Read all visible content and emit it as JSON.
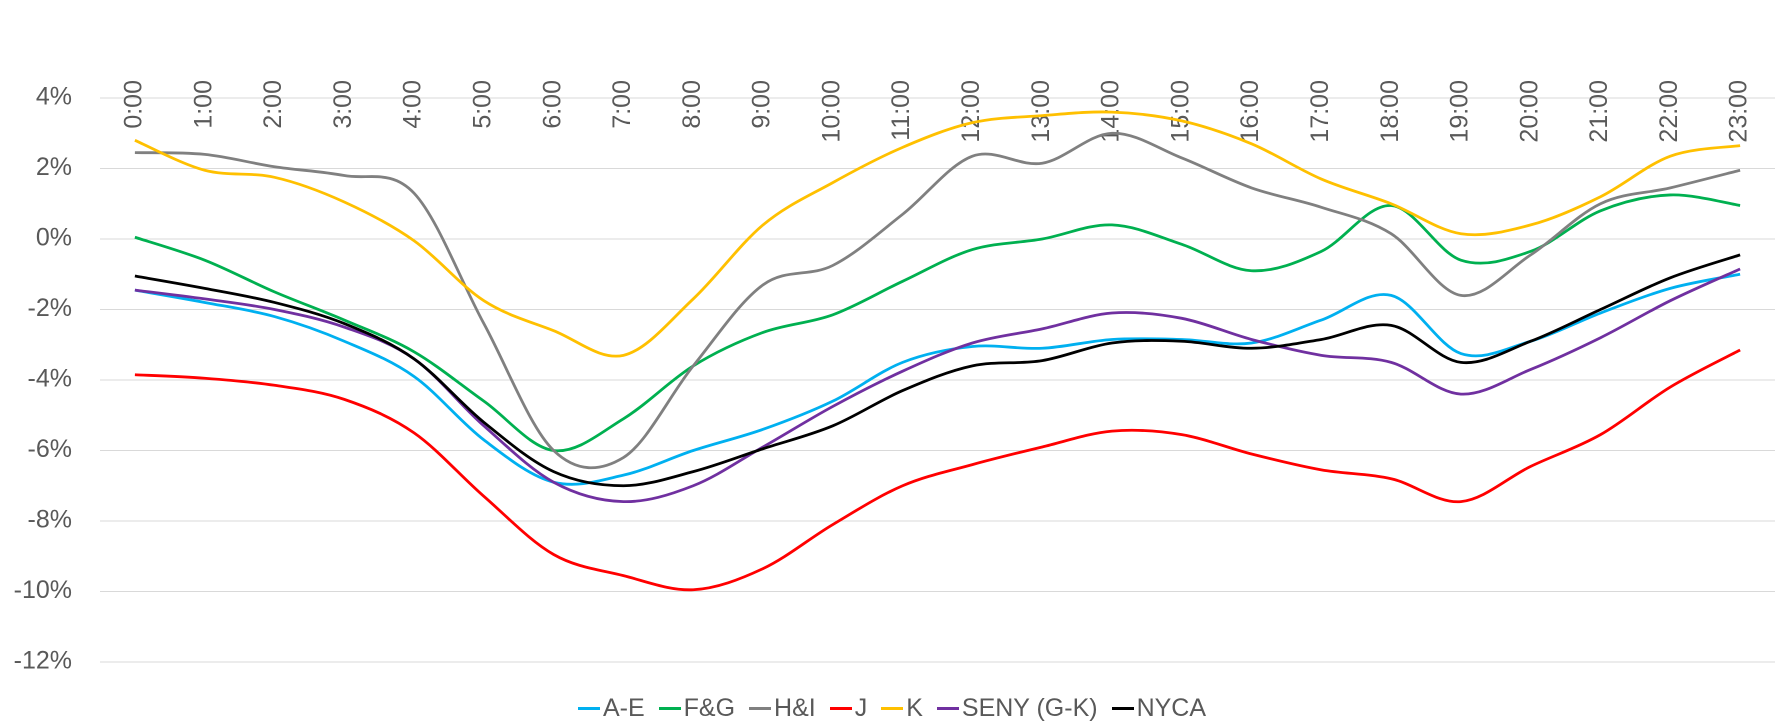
{
  "chart_data": {
    "type": "line",
    "categories": [
      "0:00",
      "1:00",
      "2:00",
      "3:00",
      "4:00",
      "5:00",
      "6:00",
      "7:00",
      "8:00",
      "9:00",
      "10:00",
      "11:00",
      "12:00",
      "13:00",
      "14:00",
      "15:00",
      "16:00",
      "17:00",
      "18:00",
      "19:00",
      "20:00",
      "21:00",
      "22:00",
      "23:00"
    ],
    "ylim": [
      -12,
      4
    ],
    "yticks": [
      {
        "value": -12,
        "label": "-12%"
      },
      {
        "value": -10,
        "label": "-10%"
      },
      {
        "value": -8,
        "label": "-8%"
      },
      {
        "value": -6,
        "label": "-6%"
      },
      {
        "value": -4,
        "label": "-4%"
      },
      {
        "value": -2,
        "label": "-2%"
      },
      {
        "value": 0,
        "label": "0%"
      },
      {
        "value": 2,
        "label": "2%"
      },
      {
        "value": 4,
        "label": "4%"
      }
    ],
    "grid": true,
    "series": [
      {
        "name": "A-E",
        "color": "#00b0f0",
        "values": [
          -1.45,
          -1.8,
          -2.2,
          -2.9,
          -3.9,
          -5.7,
          -6.9,
          -6.7,
          -6.0,
          -5.4,
          -4.6,
          -3.5,
          -3.05,
          -3.1,
          -2.85,
          -2.85,
          -2.95,
          -2.3,
          -1.6,
          -3.25,
          -2.9,
          -2.1,
          -1.4,
          -1.0
        ]
      },
      {
        "name": "F&G",
        "color": "#00b050",
        "values": [
          0.05,
          -0.6,
          -1.5,
          -2.3,
          -3.2,
          -4.6,
          -6.0,
          -5.1,
          -3.6,
          -2.65,
          -2.15,
          -1.2,
          -0.3,
          0.0,
          0.4,
          -0.15,
          -0.9,
          -0.35,
          0.95,
          -0.6,
          -0.35,
          0.8,
          1.25,
          0.95
        ]
      },
      {
        "name": "H&I",
        "color": "#808080",
        "values": [
          2.45,
          2.4,
          2.05,
          1.8,
          1.3,
          -2.4,
          -6.0,
          -6.2,
          -3.6,
          -1.3,
          -0.75,
          0.7,
          2.35,
          2.15,
          3.0,
          2.3,
          1.45,
          0.9,
          0.15,
          -1.6,
          -0.45,
          1.0,
          1.45,
          1.95
        ]
      },
      {
        "name": "J",
        "color": "#ff0000",
        "values": [
          -3.85,
          -3.95,
          -4.15,
          -4.55,
          -5.5,
          -7.3,
          -8.95,
          -9.55,
          -9.95,
          -9.35,
          -8.1,
          -7.0,
          -6.4,
          -5.9,
          -5.45,
          -5.55,
          -6.1,
          -6.55,
          -6.8,
          -7.45,
          -6.45,
          -5.55,
          -4.2,
          -3.15
        ]
      },
      {
        "name": "K",
        "color": "#ffc000",
        "values": [
          2.8,
          1.95,
          1.75,
          1.05,
          -0.05,
          -1.75,
          -2.6,
          -3.3,
          -1.7,
          0.4,
          1.6,
          2.6,
          3.3,
          3.5,
          3.6,
          3.35,
          2.7,
          1.7,
          1.0,
          0.15,
          0.4,
          1.2,
          2.35,
          2.65
        ]
      },
      {
        "name": "SENY (G-K)",
        "color": "#7030a0",
        "values": [
          -1.45,
          -1.7,
          -2.0,
          -2.5,
          -3.4,
          -5.3,
          -6.9,
          -7.45,
          -7.0,
          -5.9,
          -4.75,
          -3.75,
          -2.95,
          -2.55,
          -2.1,
          -2.25,
          -2.85,
          -3.3,
          -3.5,
          -4.4,
          -3.7,
          -2.8,
          -1.75,
          -0.85
        ]
      },
      {
        "name": "NYCA",
        "color": "#000000",
        "values": [
          -1.05,
          -1.4,
          -1.8,
          -2.4,
          -3.4,
          -5.2,
          -6.6,
          -7.0,
          -6.6,
          -5.95,
          -5.3,
          -4.3,
          -3.6,
          -3.45,
          -2.95,
          -2.9,
          -3.1,
          -2.85,
          -2.45,
          -3.5,
          -2.9,
          -2.0,
          -1.1,
          -0.45
        ]
      }
    ]
  }
}
